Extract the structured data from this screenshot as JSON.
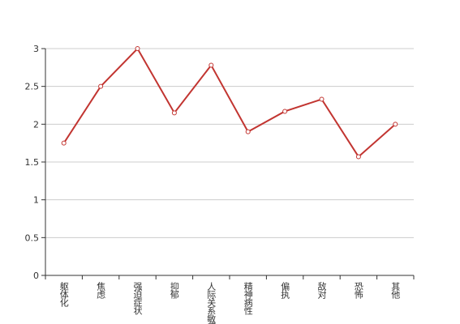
{
  "chart_data": {
    "type": "line",
    "categories": [
      "躯体化",
      "焦虑",
      "强迫症状",
      "抑郁",
      "人际关系敏感",
      "精神病性",
      "偏执",
      "敌对",
      "恐怖",
      "其他"
    ],
    "values": [
      1.75,
      2.5,
      3.0,
      2.15,
      2.78,
      1.9,
      2.17,
      2.33,
      1.57,
      2.0
    ],
    "color": "#c23531",
    "ylim": [
      0,
      3
    ],
    "yticks": [
      0,
      0.5,
      1,
      1.5,
      2,
      2.5,
      3
    ],
    "grid": true
  }
}
